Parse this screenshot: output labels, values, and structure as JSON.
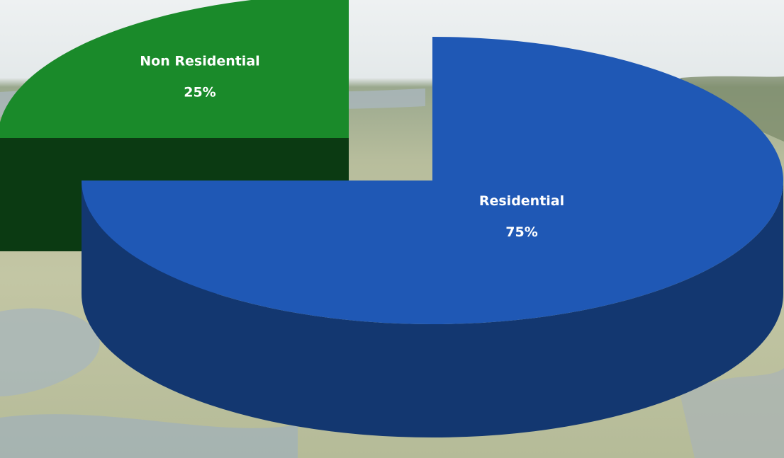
{
  "chart_data": {
    "type": "pie",
    "categories": [
      "Residential",
      "Non Residential"
    ],
    "values": [
      75,
      25
    ],
    "value_labels": [
      "75%",
      "25%"
    ],
    "colors": [
      "#1f58b5",
      "#1a8a2a"
    ]
  }
}
